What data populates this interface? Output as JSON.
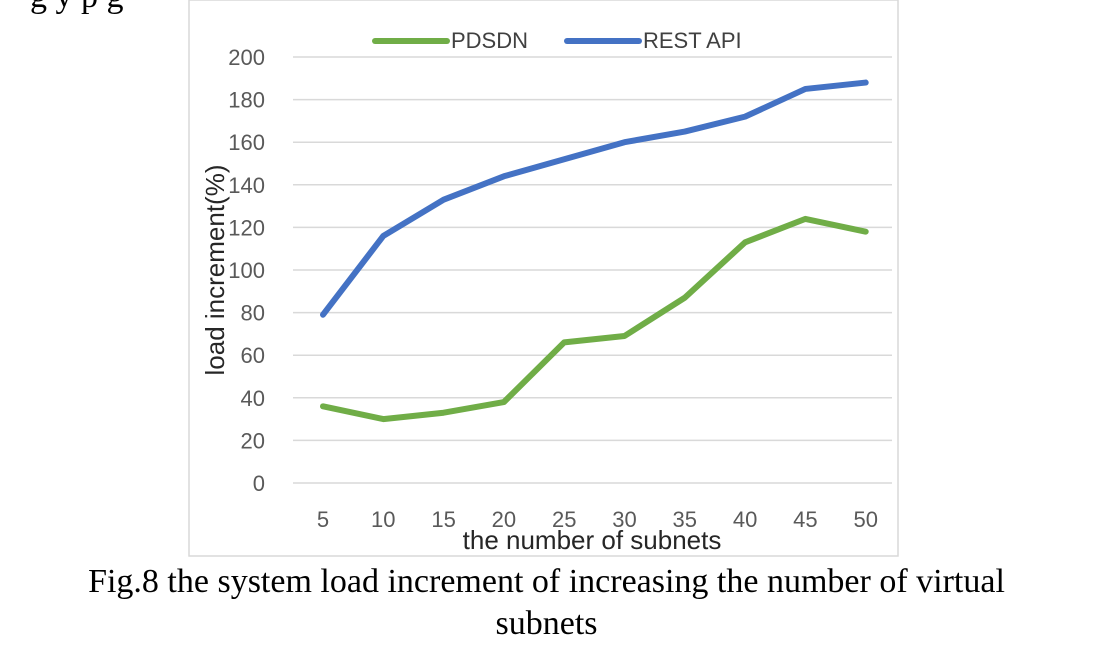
{
  "top_fragment": "g  y   p      g",
  "caption": {
    "line1": "Fig.8 the system load increment of increasing the number of virtual",
    "line2": "subnets"
  },
  "chart_data": {
    "type": "line",
    "x": [
      5,
      10,
      15,
      20,
      25,
      30,
      35,
      40,
      45,
      50
    ],
    "categories": [
      "5",
      "10",
      "15",
      "20",
      "25",
      "30",
      "35",
      "40",
      "45",
      "50"
    ],
    "series": [
      {
        "name": "PDSDN",
        "color": "#70ad47",
        "values": [
          36,
          30,
          33,
          38,
          66,
          69,
          87,
          113,
          124,
          118
        ]
      },
      {
        "name": "REST API",
        "color": "#4472c4",
        "values": [
          79,
          116,
          133,
          144,
          152,
          160,
          165,
          172,
          185,
          188
        ]
      }
    ],
    "title": "",
    "xlabel": "the number of subnets",
    "ylabel": "load increment(%)",
    "ylim": [
      0,
      200
    ],
    "yticks": [
      0,
      20,
      40,
      60,
      80,
      100,
      120,
      140,
      160,
      180,
      200
    ],
    "grid": true,
    "legend": "top-center"
  }
}
